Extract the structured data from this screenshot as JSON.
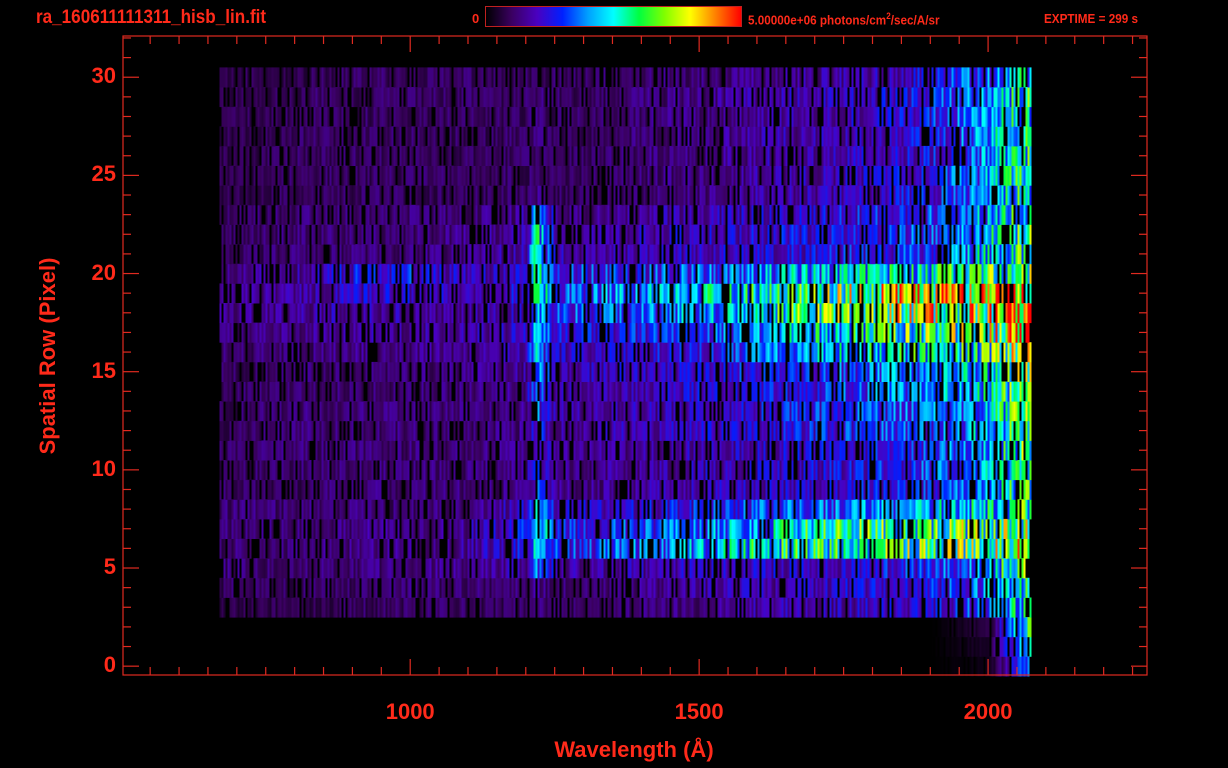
{
  "title": "ra_160611111311_hisb_lin.fit",
  "colorbar": {
    "min_label": "0",
    "max_label_prefix": "5.00000e+06 photons/cm",
    "max_label_sup": "2",
    "max_label_suffix": "/sec/A/sr",
    "stops": [
      "#000000",
      "#3a0060",
      "#4a00c0",
      "#0020ff",
      "#00a0ff",
      "#00ffff",
      "#00ff40",
      "#80ff00",
      "#ffff00",
      "#ff8000",
      "#ff0000"
    ]
  },
  "exptime": "EXPTIME = 299 s",
  "colors": {
    "axis": "#e02a20",
    "text": "#ff2a1a",
    "background": "#000000"
  },
  "chart_data": {
    "type": "heatmap",
    "xlabel": "Wavelength (Å)",
    "ylabel": "Spatial Row (Pixel)",
    "xlim": [
      503,
      2275
    ],
    "ylim": [
      -0.45,
      32.1
    ],
    "x_ticks": [
      "1000",
      "1500",
      "2000"
    ],
    "x_tick_values": [
      1000,
      1500,
      2000
    ],
    "y_ticks": [
      "0",
      "5",
      "10",
      "15",
      "20",
      "25",
      "30"
    ],
    "y_tick_values": [
      0,
      5,
      10,
      15,
      20,
      25,
      30
    ],
    "color_range": [
      0,
      5000000
    ],
    "value_unit": "photons/cm^2/sec/A/sr (×1e6)",
    "wavelength_range": [
      670,
      2075
    ],
    "profile_wavelengths": [
      700,
      800,
      900,
      1000,
      1100,
      1200,
      1216,
      1250,
      1300,
      1400,
      1500,
      1600,
      1700,
      1800,
      1900,
      2000,
      2060
    ],
    "rows": [
      {
        "row": 0,
        "values": [
          0,
          0,
          0,
          0,
          0,
          0,
          0,
          0,
          0,
          0,
          0,
          0,
          0,
          0,
          0,
          0.1,
          1.5
        ]
      },
      {
        "row": 1,
        "values": [
          0,
          0,
          0,
          0,
          0,
          0,
          0,
          0,
          0,
          0,
          0,
          0,
          0,
          0,
          0,
          0.2,
          2.5
        ]
      },
      {
        "row": 2,
        "values": [
          0,
          0,
          0,
          0,
          0,
          0,
          0,
          0,
          0,
          0,
          0,
          0,
          0,
          0,
          0,
          0.3,
          2.6
        ]
      },
      {
        "row": 3,
        "values": [
          0.4,
          0.4,
          0.5,
          0.5,
          0.5,
          0.5,
          0.6,
          0.5,
          0.5,
          0.6,
          0.7,
          0.8,
          0.9,
          1.0,
          1.2,
          1.6,
          2.5
        ]
      },
      {
        "row": 4,
        "values": [
          0.5,
          0.5,
          0.5,
          0.6,
          0.6,
          0.6,
          0.7,
          0.6,
          0.6,
          0.7,
          0.8,
          0.9,
          1.0,
          1.1,
          1.3,
          1.8,
          2.8
        ]
      },
      {
        "row": 5,
        "values": [
          0.6,
          0.6,
          0.6,
          0.7,
          0.7,
          0.9,
          1.8,
          0.9,
          0.8,
          0.9,
          1.0,
          1.0,
          1.1,
          1.2,
          1.4,
          1.9,
          3.5
        ]
      },
      {
        "row": 6,
        "values": [
          0.6,
          0.6,
          0.7,
          0.7,
          0.8,
          1.2,
          2.3,
          1.5,
          1.5,
          1.7,
          2.0,
          2.4,
          2.8,
          2.9,
          3.0,
          3.2,
          3.6
        ]
      },
      {
        "row": 7,
        "values": [
          0.6,
          0.6,
          0.7,
          0.7,
          0.8,
          1.3,
          2.5,
          1.4,
          1.3,
          1.5,
          1.8,
          2.1,
          2.6,
          2.8,
          2.9,
          3.0,
          3.2
        ]
      },
      {
        "row": 8,
        "values": [
          0.6,
          0.6,
          0.6,
          0.6,
          0.7,
          1.0,
          2.0,
          1.0,
          1.0,
          1.1,
          1.3,
          1.5,
          1.7,
          1.8,
          2.0,
          2.3,
          2.8
        ]
      },
      {
        "row": 9,
        "values": [
          0.5,
          0.5,
          0.6,
          0.6,
          0.6,
          0.7,
          1.5,
          0.7,
          0.7,
          0.8,
          0.9,
          1.0,
          1.1,
          1.2,
          1.4,
          1.9,
          2.8
        ]
      },
      {
        "row": 10,
        "values": [
          0.5,
          0.6,
          0.6,
          0.6,
          0.6,
          0.7,
          1.6,
          0.7,
          0.7,
          0.8,
          0.9,
          1.0,
          1.1,
          1.3,
          1.5,
          2.0,
          3.0
        ]
      },
      {
        "row": 11,
        "values": [
          0.5,
          0.6,
          0.6,
          0.6,
          0.6,
          0.7,
          1.5,
          0.7,
          0.7,
          0.8,
          0.9,
          1.0,
          1.2,
          1.3,
          1.5,
          2.0,
          2.8
        ]
      },
      {
        "row": 12,
        "values": [
          0.5,
          0.6,
          0.6,
          0.6,
          0.6,
          0.7,
          1.5,
          0.8,
          0.8,
          0.9,
          1.0,
          1.1,
          1.3,
          1.4,
          1.6,
          2.1,
          2.8
        ]
      },
      {
        "row": 13,
        "values": [
          0.5,
          0.6,
          0.6,
          0.6,
          0.6,
          0.7,
          1.6,
          0.8,
          0.8,
          0.9,
          1.0,
          1.2,
          1.3,
          1.5,
          1.7,
          2.2,
          2.9
        ]
      },
      {
        "row": 14,
        "values": [
          0.5,
          0.6,
          0.6,
          0.6,
          0.7,
          0.8,
          1.7,
          0.8,
          0.8,
          0.9,
          1.1,
          1.2,
          1.4,
          1.6,
          1.8,
          2.2,
          3.0
        ]
      },
      {
        "row": 15,
        "values": [
          0.5,
          0.6,
          0.6,
          0.6,
          0.7,
          0.8,
          1.8,
          0.9,
          0.9,
          1.0,
          1.1,
          1.3,
          1.5,
          1.7,
          1.9,
          2.3,
          3.2
        ]
      },
      {
        "row": 16,
        "values": [
          0.6,
          0.6,
          0.7,
          0.7,
          0.7,
          0.9,
          2.0,
          1.0,
          1.0,
          1.1,
          1.3,
          1.6,
          2.0,
          2.3,
          2.5,
          2.7,
          3.6
        ]
      },
      {
        "row": 17,
        "values": [
          0.6,
          0.7,
          0.8,
          0.8,
          0.8,
          1.0,
          2.0,
          1.2,
          1.2,
          1.3,
          1.5,
          1.8,
          2.3,
          2.6,
          2.9,
          3.2,
          4.5
        ]
      },
      {
        "row": 18,
        "values": [
          0.7,
          0.8,
          0.9,
          0.8,
          0.8,
          1.0,
          2.2,
          1.5,
          1.5,
          1.7,
          2.0,
          2.4,
          2.9,
          3.3,
          3.6,
          3.8,
          4.8
        ]
      },
      {
        "row": 19,
        "values": [
          0.7,
          0.8,
          1.0,
          1.1,
          0.9,
          1.2,
          2.6,
          1.8,
          1.7,
          1.9,
          2.2,
          2.6,
          3.0,
          3.4,
          3.8,
          4.2,
          4.5
        ]
      },
      {
        "row": 20,
        "values": [
          0.7,
          0.8,
          1.2,
          1.3,
          0.9,
          1.2,
          2.6,
          1.4,
          1.4,
          1.5,
          1.7,
          1.9,
          2.1,
          2.3,
          2.5,
          2.8,
          3.0
        ]
      },
      {
        "row": 21,
        "values": [
          0.5,
          0.6,
          0.6,
          0.6,
          0.7,
          0.9,
          2.6,
          0.9,
          0.8,
          0.9,
          1.0,
          1.1,
          1.2,
          1.3,
          1.6,
          2.2,
          2.8
        ]
      },
      {
        "row": 22,
        "values": [
          0.5,
          0.6,
          0.6,
          0.6,
          0.7,
          0.9,
          2.6,
          0.9,
          0.8,
          0.9,
          1.0,
          1.1,
          1.2,
          1.3,
          1.6,
          2.2,
          2.8
        ]
      },
      {
        "row": 23,
        "values": [
          0.5,
          0.6,
          0.6,
          0.6,
          0.6,
          0.8,
          2.3,
          0.8,
          0.7,
          0.8,
          0.9,
          1.0,
          1.1,
          1.3,
          1.5,
          2.1,
          2.7
        ]
      },
      {
        "row": 24,
        "values": [
          0.4,
          0.5,
          0.5,
          0.5,
          0.5,
          0.5,
          0.7,
          0.5,
          0.5,
          0.6,
          0.7,
          0.8,
          0.9,
          1.0,
          1.3,
          1.9,
          2.6
        ]
      },
      {
        "row": 25,
        "values": [
          0.4,
          0.5,
          0.5,
          0.5,
          0.5,
          0.5,
          0.6,
          0.5,
          0.5,
          0.6,
          0.7,
          0.8,
          0.9,
          1.0,
          1.3,
          1.9,
          2.6
        ]
      },
      {
        "row": 26,
        "values": [
          0.4,
          0.5,
          0.5,
          0.5,
          0.5,
          0.5,
          0.6,
          0.5,
          0.5,
          0.6,
          0.7,
          0.8,
          0.9,
          1.0,
          1.3,
          1.9,
          2.6
        ]
      },
      {
        "row": 27,
        "values": [
          0.4,
          0.5,
          0.5,
          0.5,
          0.5,
          0.5,
          0.6,
          0.5,
          0.5,
          0.6,
          0.7,
          0.8,
          0.9,
          1.0,
          1.3,
          1.9,
          2.6
        ]
      },
      {
        "row": 28,
        "values": [
          0.4,
          0.5,
          0.5,
          0.5,
          0.5,
          0.5,
          0.6,
          0.5,
          0.5,
          0.6,
          0.7,
          0.8,
          0.9,
          1.0,
          1.3,
          1.9,
          2.6
        ]
      },
      {
        "row": 29,
        "values": [
          0.4,
          0.5,
          0.5,
          0.5,
          0.5,
          0.5,
          0.6,
          0.5,
          0.5,
          0.6,
          0.7,
          0.8,
          0.9,
          1.0,
          1.3,
          1.9,
          2.6
        ]
      },
      {
        "row": 30,
        "values": [
          0.4,
          0.4,
          0.5,
          0.5,
          0.5,
          0.5,
          0.5,
          0.5,
          0.5,
          0.6,
          0.6,
          0.7,
          0.8,
          0.9,
          1.2,
          1.8,
          2.3
        ]
      }
    ]
  }
}
